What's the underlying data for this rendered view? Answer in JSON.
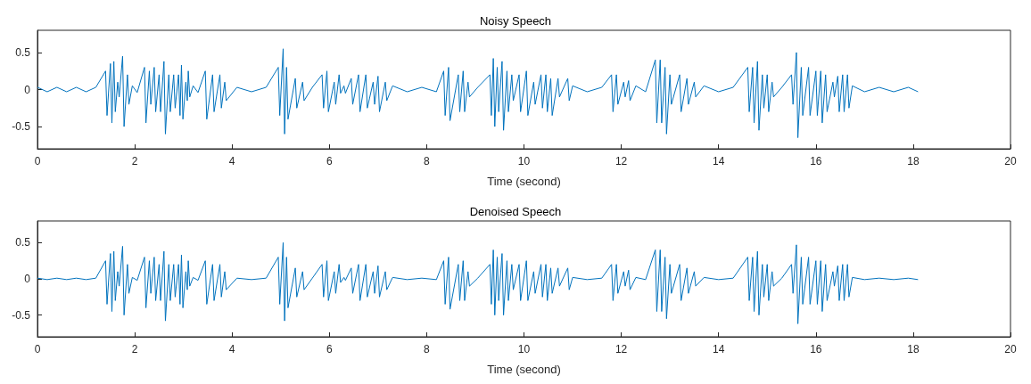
{
  "chart_data": [
    {
      "type": "line",
      "title": "Noisy Speech",
      "xlabel": "Time (second)",
      "xlim": [
        0,
        20
      ],
      "xticks": [
        0,
        2,
        4,
        6,
        8,
        10,
        12,
        14,
        16,
        18,
        20
      ],
      "ylim": [
        -0.8,
        0.8
      ],
      "yticks": [
        -0.5,
        0,
        0.5
      ],
      "line_style": "solid",
      "marker": "none",
      "series": [
        {
          "color": "#0072bd",
          "x": [
            0,
            0.2,
            0.4,
            0.6,
            0.8,
            1.0,
            1.2,
            1.4,
            1.43,
            1.5,
            1.53,
            1.57,
            1.6,
            1.65,
            1.68,
            1.75,
            1.78,
            1.85,
            1.88,
            1.95,
            2.05,
            2.2,
            2.23,
            2.3,
            2.33,
            2.4,
            2.43,
            2.5,
            2.53,
            2.6,
            2.63,
            2.7,
            2.73,
            2.8,
            2.83,
            2.9,
            2.93,
            2.96,
            2.99,
            3.05,
            3.08,
            3.1,
            3.13,
            3.2,
            3.3,
            3.45,
            3.48,
            3.6,
            3.63,
            3.75,
            3.78,
            3.85,
            3.88,
            4.1,
            4.4,
            4.7,
            4.95,
            4.98,
            5.05,
            5.08,
            5.12,
            5.15,
            5.3,
            5.33,
            5.45,
            5.48,
            5.65,
            5.85,
            5.88,
            5.95,
            5.98,
            6.1,
            6.13,
            6.2,
            6.23,
            6.3,
            6.33,
            6.45,
            6.48,
            6.6,
            6.63,
            6.75,
            6.78,
            6.9,
            6.93,
            7.0,
            7.03,
            7.15,
            7.18,
            7.3,
            7.6,
            7.9,
            8.2,
            8.35,
            8.38,
            8.45,
            8.48,
            8.65,
            8.68,
            8.75,
            8.78,
            8.85,
            8.88,
            9.05,
            9.3,
            9.33,
            9.37,
            9.4,
            9.45,
            9.48,
            9.55,
            9.58,
            9.65,
            9.68,
            9.75,
            9.78,
            9.9,
            9.93,
            10.05,
            10.08,
            10.2,
            10.23,
            10.35,
            10.38,
            10.45,
            10.48,
            10.55,
            10.58,
            10.7,
            10.73,
            10.9,
            10.93,
            11.0,
            11.3,
            11.6,
            11.8,
            11.83,
            11.9,
            11.93,
            12.05,
            12.08,
            12.15,
            12.18,
            12.3,
            12.5,
            12.7,
            12.73,
            12.8,
            12.83,
            12.9,
            12.93,
            13.0,
            13.03,
            13.2,
            13.23,
            13.35,
            13.38,
            13.5,
            13.53,
            13.7,
            14.0,
            14.3,
            14.6,
            14.63,
            14.7,
            14.73,
            14.8,
            14.83,
            14.9,
            14.93,
            15.0,
            15.03,
            15.1,
            15.13,
            15.3,
            15.5,
            15.53,
            15.6,
            15.63,
            15.7,
            15.73,
            15.85,
            15.88,
            16.0,
            16.03,
            16.1,
            16.13,
            16.2,
            16.23,
            16.35,
            16.38,
            16.45,
            16.48,
            16.55,
            16.58,
            16.65,
            16.68,
            16.75,
            17.0,
            17.3,
            17.6,
            17.9,
            18.1
          ],
          "values": [
            0.03,
            -0.03,
            0.03,
            -0.03,
            0.03,
            -0.03,
            0.03,
            0.25,
            -0.35,
            0.35,
            -0.45,
            0.38,
            -0.3,
            0.1,
            -0.1,
            0.45,
            -0.5,
            0.2,
            -0.2,
            0.05,
            -0.04,
            0.3,
            -0.45,
            0.25,
            -0.2,
            0.3,
            -0.3,
            0.2,
            -0.3,
            0.38,
            -0.6,
            0.2,
            -0.3,
            0.2,
            -0.25,
            0.2,
            -0.35,
            0.33,
            -0.4,
            0.1,
            -0.15,
            0.25,
            -0.1,
            0.05,
            -0.04,
            0.25,
            -0.4,
            0.2,
            -0.3,
            0.2,
            -0.25,
            0.1,
            -0.15,
            0.03,
            -0.03,
            0.03,
            0.3,
            -0.35,
            0.55,
            -0.6,
            0.3,
            -0.4,
            0.15,
            -0.25,
            0.1,
            -0.15,
            0.03,
            0.2,
            -0.25,
            0.25,
            -0.3,
            0.1,
            -0.2,
            0.2,
            -0.05,
            0.05,
            -0.05,
            0.15,
            -0.2,
            0.2,
            -0.3,
            0.2,
            -0.25,
            0.1,
            -0.2,
            0.18,
            -0.3,
            0.1,
            -0.15,
            0.05,
            -0.03,
            0.03,
            -0.03,
            0.25,
            -0.35,
            0.3,
            -0.42,
            0.2,
            -0.3,
            0.25,
            -0.3,
            0.1,
            -0.1,
            0.03,
            0.2,
            -0.35,
            0.42,
            -0.5,
            0.3,
            -0.3,
            0.38,
            -0.55,
            0.25,
            -0.3,
            0.2,
            -0.15,
            0.2,
            -0.3,
            0.25,
            -0.35,
            0.1,
            -0.2,
            0.2,
            -0.25,
            0.2,
            -0.3,
            0.15,
            -0.35,
            0.15,
            -0.1,
            0.15,
            -0.15,
            0.05,
            -0.03,
            0.03,
            0.2,
            -0.3,
            0.2,
            -0.2,
            0.1,
            -0.1,
            0.12,
            -0.15,
            0.05,
            -0.03,
            0.4,
            -0.45,
            0.4,
            -0.45,
            0.3,
            -0.6,
            0.2,
            -0.2,
            0.2,
            -0.3,
            0.15,
            -0.2,
            0.1,
            -0.1,
            0.05,
            -0.03,
            0.03,
            0.3,
            -0.3,
            0.3,
            -0.45,
            0.38,
            -0.55,
            0.2,
            -0.25,
            0.2,
            -0.3,
            0.1,
            -0.1,
            0.03,
            0.2,
            -0.2,
            0.5,
            -0.65,
            0.3,
            -0.35,
            0.3,
            -0.35,
            0.25,
            -0.35,
            0.25,
            -0.45,
            0.2,
            -0.3,
            0.1,
            -0.1,
            0.18,
            -0.3,
            0.2,
            -0.3,
            0.2,
            -0.25,
            0.05,
            -0.03,
            0.03,
            -0.03,
            0.03,
            -0.03
          ]
        }
      ]
    },
    {
      "type": "line",
      "title": "Denoised Speech",
      "xlabel": "Time (second)",
      "xlim": [
        0,
        20
      ],
      "xticks": [
        0,
        2,
        4,
        6,
        8,
        10,
        12,
        14,
        16,
        18,
        20
      ],
      "ylim": [
        -0.8,
        0.8
      ],
      "yticks": [
        -0.5,
        0,
        0.5
      ],
      "line_style": "solid",
      "marker": "none",
      "series": [
        {
          "color": "#0072bd",
          "x": [
            0,
            0.2,
            0.4,
            0.6,
            0.8,
            1.0,
            1.2,
            1.4,
            1.43,
            1.5,
            1.53,
            1.57,
            1.6,
            1.65,
            1.68,
            1.75,
            1.78,
            1.85,
            1.88,
            1.95,
            2.05,
            2.2,
            2.23,
            2.3,
            2.33,
            2.4,
            2.43,
            2.5,
            2.53,
            2.6,
            2.63,
            2.7,
            2.73,
            2.8,
            2.83,
            2.9,
            2.93,
            2.96,
            2.99,
            3.05,
            3.08,
            3.1,
            3.13,
            3.2,
            3.3,
            3.45,
            3.48,
            3.6,
            3.63,
            3.75,
            3.78,
            3.85,
            3.88,
            4.1,
            4.4,
            4.7,
            4.95,
            4.98,
            5.05,
            5.08,
            5.12,
            5.15,
            5.3,
            5.33,
            5.45,
            5.48,
            5.65,
            5.85,
            5.88,
            5.95,
            5.98,
            6.1,
            6.13,
            6.2,
            6.23,
            6.3,
            6.33,
            6.45,
            6.48,
            6.6,
            6.63,
            6.75,
            6.78,
            6.9,
            6.93,
            7.0,
            7.03,
            7.15,
            7.18,
            7.3,
            7.6,
            7.9,
            8.2,
            8.35,
            8.38,
            8.45,
            8.48,
            8.65,
            8.68,
            8.75,
            8.78,
            8.85,
            8.88,
            9.05,
            9.3,
            9.33,
            9.37,
            9.4,
            9.45,
            9.48,
            9.55,
            9.58,
            9.65,
            9.68,
            9.75,
            9.78,
            9.9,
            9.93,
            10.05,
            10.08,
            10.2,
            10.23,
            10.35,
            10.38,
            10.45,
            10.48,
            10.55,
            10.58,
            10.7,
            10.73,
            10.9,
            10.93,
            11.0,
            11.3,
            11.6,
            11.8,
            11.83,
            11.9,
            11.93,
            12.05,
            12.08,
            12.15,
            12.18,
            12.3,
            12.5,
            12.7,
            12.73,
            12.8,
            12.83,
            12.9,
            12.93,
            13.0,
            13.03,
            13.2,
            13.23,
            13.35,
            13.38,
            13.5,
            13.53,
            13.7,
            14.0,
            14.3,
            14.6,
            14.63,
            14.7,
            14.73,
            14.8,
            14.83,
            14.9,
            14.93,
            15.0,
            15.03,
            15.1,
            15.13,
            15.3,
            15.5,
            15.53,
            15.6,
            15.63,
            15.7,
            15.73,
            15.85,
            15.88,
            16.0,
            16.03,
            16.1,
            16.13,
            16.2,
            16.23,
            16.35,
            16.38,
            16.45,
            16.48,
            16.55,
            16.58,
            16.65,
            16.68,
            16.75,
            17.0,
            17.3,
            17.6,
            17.9,
            18.1
          ],
          "values": [
            0.01,
            -0.01,
            0.01,
            -0.01,
            0.01,
            -0.01,
            0.01,
            0.25,
            -0.35,
            0.35,
            -0.45,
            0.38,
            -0.3,
            0.1,
            -0.1,
            0.45,
            -0.5,
            0.2,
            -0.2,
            0.02,
            -0.02,
            0.3,
            -0.4,
            0.25,
            -0.2,
            0.3,
            -0.3,
            0.2,
            -0.3,
            0.38,
            -0.58,
            0.2,
            -0.3,
            0.2,
            -0.25,
            0.2,
            -0.35,
            0.33,
            -0.4,
            0.1,
            -0.15,
            0.25,
            -0.1,
            0.02,
            -0.02,
            0.25,
            -0.35,
            0.2,
            -0.3,
            0.2,
            -0.25,
            0.1,
            -0.15,
            0.01,
            -0.01,
            0.01,
            0.3,
            -0.35,
            0.5,
            -0.58,
            0.3,
            -0.4,
            0.15,
            -0.25,
            0.1,
            -0.15,
            0.01,
            0.2,
            -0.25,
            0.25,
            -0.3,
            0.1,
            -0.2,
            0.2,
            -0.05,
            0.02,
            -0.02,
            0.15,
            -0.2,
            0.2,
            -0.3,
            0.2,
            -0.25,
            0.1,
            -0.2,
            0.18,
            -0.25,
            0.1,
            -0.15,
            0.02,
            -0.01,
            0.01,
            -0.01,
            0.25,
            -0.35,
            0.3,
            -0.42,
            0.2,
            -0.3,
            0.25,
            -0.3,
            0.1,
            -0.1,
            0.01,
            0.2,
            -0.35,
            0.4,
            -0.5,
            0.3,
            -0.3,
            0.35,
            -0.5,
            0.25,
            -0.3,
            0.2,
            -0.15,
            0.2,
            -0.3,
            0.25,
            -0.3,
            0.1,
            -0.2,
            0.2,
            -0.25,
            0.2,
            -0.3,
            0.15,
            -0.2,
            0.15,
            -0.1,
            0.15,
            -0.15,
            0.02,
            -0.01,
            0.01,
            0.2,
            -0.3,
            0.2,
            -0.2,
            0.1,
            -0.1,
            0.12,
            -0.15,
            0.02,
            -0.01,
            0.4,
            -0.45,
            0.4,
            -0.45,
            0.3,
            -0.55,
            0.2,
            -0.2,
            0.2,
            -0.3,
            0.15,
            -0.2,
            0.1,
            -0.1,
            0.02,
            -0.01,
            0.01,
            0.3,
            -0.3,
            0.3,
            -0.45,
            0.38,
            -0.5,
            0.2,
            -0.25,
            0.2,
            -0.3,
            0.1,
            -0.1,
            0.01,
            0.2,
            -0.2,
            0.47,
            -0.62,
            0.3,
            -0.35,
            0.3,
            -0.35,
            0.25,
            -0.35,
            0.25,
            -0.45,
            0.2,
            -0.3,
            0.1,
            -0.1,
            0.18,
            -0.3,
            0.2,
            -0.3,
            0.2,
            -0.25,
            0.02,
            -0.01,
            0.01,
            -0.01,
            0.01,
            -0.01
          ]
        }
      ]
    }
  ]
}
